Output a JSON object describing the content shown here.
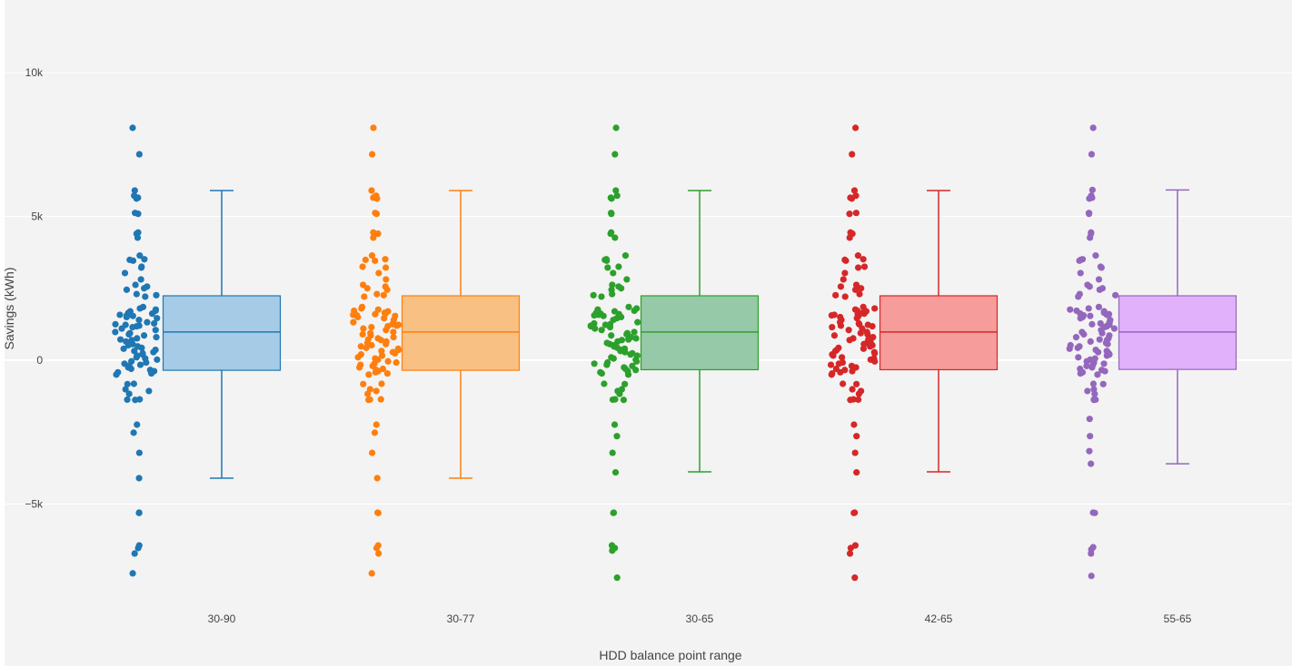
{
  "chart_data": {
    "type": "box",
    "title": "",
    "xlabel": "HDD balance point range",
    "ylabel": "Savings (kWh)",
    "ylim": [
      -8800,
      11500
    ],
    "yticks": [
      {
        "value": -5000,
        "label": "−5k"
      },
      {
        "value": 0,
        "label": "0"
      },
      {
        "value": 5000,
        "label": "5k"
      },
      {
        "value": 10000,
        "label": "10k"
      }
    ],
    "grid": true,
    "categories": [
      "30-90",
      "30-77",
      "30-65",
      "42-65",
      "55-65"
    ],
    "series": [
      {
        "category": "30-90",
        "color": "#1f77b4",
        "fill": "#a6cbe6",
        "box": {
          "lower_whisker": -4100,
          "q1": -350,
          "median": 980,
          "q3": 2240,
          "upper_whisker": 5900
        },
        "points": [
          8080,
          7160,
          5900,
          5720,
          5650,
          5620,
          5120,
          5090,
          4440,
          4400,
          4260,
          3640,
          3510,
          3490,
          3460,
          3250,
          3220,
          3030,
          2810,
          2620,
          2560,
          2500,
          2450,
          2300,
          2260,
          2210,
          1850,
          1800,
          1760,
          1720,
          1700,
          1650,
          1620,
          1600,
          1580,
          1560,
          1540,
          1500,
          1460,
          1400,
          1320,
          1280,
          1250,
          1230,
          1200,
          1180,
          1150,
          1100,
          1050,
          980,
          940,
          900,
          860,
          800,
          760,
          720,
          700,
          650,
          600,
          560,
          520,
          480,
          430,
          400,
          360,
          320,
          280,
          240,
          200,
          160,
          100,
          60,
          20,
          -40,
          -80,
          -120,
          -160,
          -200,
          -250,
          -300,
          -340,
          -380,
          -420,
          -460,
          -500,
          -820,
          -830,
          -1010,
          -1070,
          -1170,
          -1360,
          -1370,
          -1380,
          -2240,
          -2520,
          -3220,
          -4100,
          -5300,
          -5310,
          -6440,
          -6530,
          -6720,
          -7410
        ]
      },
      {
        "category": "30-77",
        "color": "#ff7f0e",
        "fill": "#f9c083",
        "box": {
          "lower_whisker": -4100,
          "q1": -350,
          "median": 980,
          "q3": 2240,
          "upper_whisker": 5900
        },
        "points": [
          8080,
          7160,
          5900,
          5720,
          5650,
          5620,
          5120,
          5090,
          4440,
          4400,
          4260,
          3640,
          3510,
          3490,
          3460,
          3250,
          3220,
          3030,
          2810,
          2620,
          2560,
          2500,
          2450,
          2300,
          2260,
          2210,
          1850,
          1800,
          1760,
          1720,
          1700,
          1650,
          1620,
          1600,
          1580,
          1560,
          1540,
          1500,
          1460,
          1400,
          1320,
          1280,
          1250,
          1230,
          1200,
          1180,
          1150,
          1100,
          1050,
          980,
          940,
          900,
          860,
          800,
          760,
          720,
          700,
          650,
          600,
          560,
          520,
          480,
          430,
          400,
          360,
          320,
          280,
          240,
          200,
          160,
          100,
          60,
          20,
          -40,
          -80,
          -120,
          -160,
          -200,
          -250,
          -300,
          -340,
          -380,
          -420,
          -460,
          -500,
          -820,
          -830,
          -1010,
          -1070,
          -1170,
          -1360,
          -1370,
          -1380,
          -2240,
          -2520,
          -3220,
          -4100,
          -5300,
          -5310,
          -6440,
          -6530,
          -6720,
          -7410
        ]
      },
      {
        "category": "30-65",
        "color": "#2ca02c",
        "fill": "#96c9a7",
        "box": {
          "lower_whisker": -3880,
          "q1": -330,
          "median": 980,
          "q3": 2240,
          "upper_whisker": 5900
        },
        "points": [
          8080,
          7160,
          5900,
          5720,
          5650,
          5620,
          5120,
          5090,
          4440,
          4400,
          4260,
          3640,
          3510,
          3490,
          3460,
          3250,
          3220,
          3030,
          2810,
          2620,
          2560,
          2500,
          2450,
          2300,
          2260,
          2210,
          1850,
          1800,
          1760,
          1720,
          1700,
          1650,
          1620,
          1600,
          1580,
          1560,
          1540,
          1500,
          1460,
          1400,
          1320,
          1280,
          1250,
          1230,
          1200,
          1180,
          1150,
          1100,
          1050,
          980,
          940,
          900,
          860,
          800,
          760,
          720,
          700,
          650,
          600,
          560,
          520,
          480,
          430,
          400,
          360,
          320,
          280,
          240,
          200,
          160,
          100,
          60,
          20,
          -40,
          -80,
          -120,
          -160,
          -200,
          -250,
          -300,
          -340,
          -380,
          -420,
          -460,
          -500,
          -820,
          -830,
          -1010,
          -1070,
          -1170,
          -1360,
          -1370,
          -1380,
          -2240,
          -2640,
          -3220,
          -3900,
          -5300,
          -5310,
          -6440,
          -6530,
          -6620,
          -7560
        ]
      },
      {
        "category": "42-65",
        "color": "#d62728",
        "fill": "#f69c9a",
        "box": {
          "lower_whisker": -3880,
          "q1": -330,
          "median": 980,
          "q3": 2240,
          "upper_whisker": 5900
        },
        "points": [
          8080,
          7160,
          5900,
          5720,
          5650,
          5620,
          5120,
          5090,
          4440,
          4400,
          4260,
          3640,
          3510,
          3490,
          3460,
          3250,
          3220,
          3030,
          2810,
          2620,
          2560,
          2500,
          2450,
          2300,
          2260,
          2210,
          1850,
          1800,
          1760,
          1720,
          1700,
          1650,
          1620,
          1600,
          1580,
          1560,
          1540,
          1500,
          1460,
          1400,
          1320,
          1280,
          1250,
          1230,
          1200,
          1180,
          1150,
          1100,
          1050,
          980,
          940,
          900,
          860,
          800,
          760,
          720,
          700,
          650,
          600,
          560,
          520,
          480,
          430,
          400,
          360,
          320,
          280,
          240,
          200,
          160,
          100,
          60,
          20,
          -40,
          -80,
          -120,
          -160,
          -200,
          -250,
          -300,
          -340,
          -380,
          -420,
          -460,
          -500,
          -820,
          -830,
          -1010,
          -1070,
          -1170,
          -1360,
          -1370,
          -1380,
          -2240,
          -2640,
          -3220,
          -3900,
          -5300,
          -5310,
          -6440,
          -6530,
          -6720,
          -7560
        ]
      },
      {
        "category": "55-65",
        "color": "#9467bd",
        "fill": "#e1b1fb",
        "box": {
          "lower_whisker": -3600,
          "q1": -320,
          "median": 980,
          "q3": 2240,
          "upper_whisker": 5920
        },
        "points": [
          8080,
          7160,
          5920,
          5720,
          5650,
          5620,
          5120,
          5090,
          4440,
          4400,
          4260,
          3640,
          3510,
          3490,
          3460,
          3250,
          3220,
          3030,
          2810,
          2620,
          2560,
          2500,
          2450,
          2300,
          2260,
          2210,
          1850,
          1800,
          1760,
          1720,
          1700,
          1650,
          1620,
          1600,
          1580,
          1560,
          1540,
          1500,
          1460,
          1400,
          1320,
          1280,
          1250,
          1230,
          1200,
          1180,
          1150,
          1100,
          1050,
          980,
          940,
          900,
          860,
          800,
          760,
          720,
          700,
          650,
          600,
          560,
          520,
          480,
          430,
          400,
          360,
          320,
          280,
          240,
          200,
          160,
          100,
          60,
          20,
          -40,
          -80,
          -120,
          -160,
          -200,
          -250,
          -300,
          -340,
          -380,
          -420,
          -460,
          -500,
          -820,
          -830,
          -1010,
          -1070,
          -1170,
          -1360,
          -1370,
          -1380,
          -2040,
          -2640,
          -3160,
          -3600,
          -5300,
          -5310,
          -6500,
          -6580,
          -6720,
          -7500
        ]
      }
    ]
  }
}
